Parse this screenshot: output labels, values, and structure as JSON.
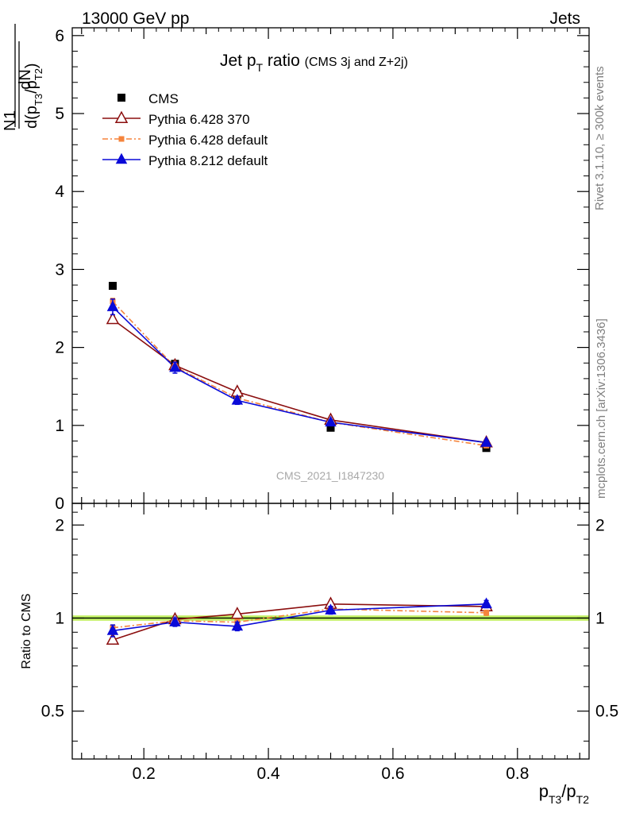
{
  "header": {
    "left": "13000 GeV pp",
    "right": "Jets"
  },
  "main_title": {
    "prefix": "Jet p",
    "sub": "T",
    "middle": " ratio ",
    "note": "(CMS 3j and Z+2j)"
  },
  "side_text": {
    "rivet": "Rivet 3.1.10, ≥ 300k events",
    "mcplots": "mcplots.cern.ch [arXiv:1306.3436]"
  },
  "watermark": "CMS_2021_I1847230",
  "colors": {
    "cms": "#000000",
    "py6_370": "#8b0e0e",
    "py6_default": "#f5843c",
    "py8": "#0a0ad8",
    "band": "#c6f06a",
    "refline": "#2f7d00"
  },
  "chart_data": [
    {
      "type": "line",
      "panel": "main",
      "ylabel": "1/N dN/d(pT3/pT2)",
      "ylim": [
        0,
        6.1
      ],
      "yticks": [
        0,
        1,
        2,
        3,
        4,
        5,
        6
      ],
      "xlim": [
        0.085,
        0.915
      ],
      "legend_position": "top-left",
      "x": [
        0.15,
        0.25,
        0.35,
        0.5,
        0.75
      ],
      "series": [
        {
          "name": "CMS",
          "marker": "square",
          "values": [
            2.79,
            1.79,
            1.4,
            0.97,
            0.71
          ]
        },
        {
          "name": "Pythia 6.428 370",
          "marker": "open-triangle",
          "line": "solid",
          "values": [
            2.36,
            1.77,
            1.43,
            1.07,
            0.78
          ],
          "errors": [
            0.04,
            0.03,
            0.02,
            0.02,
            0.02
          ]
        },
        {
          "name": "Pythia 6.428 default",
          "marker": "small-square",
          "line": "dashdot",
          "values": [
            2.59,
            1.75,
            1.35,
            1.04,
            0.74
          ],
          "errors": [
            0.04,
            0.03,
            0.02,
            0.02,
            0.02
          ]
        },
        {
          "name": "Pythia 8.212 default",
          "marker": "triangle",
          "line": "solid",
          "values": [
            2.52,
            1.74,
            1.32,
            1.04,
            0.78
          ],
          "errors": [
            0.1,
            0.07,
            0.05,
            0.03,
            0.03
          ]
        }
      ]
    },
    {
      "type": "line",
      "panel": "ratio",
      "ylabel": "Ratio to CMS",
      "ylim": [
        0.35,
        2.35
      ],
      "log_scale_y": true,
      "yticks": [
        0.5,
        1,
        2
      ],
      "xlim": [
        0.085,
        0.915
      ],
      "xticks": [
        0.2,
        0.4,
        0.6,
        0.8
      ],
      "xlabel": "pT3/pT2",
      "x": [
        0.15,
        0.25,
        0.35,
        0.5,
        0.75
      ],
      "band": [
        0.98,
        1.02
      ],
      "series": [
        {
          "name": "Pythia 6.428 370",
          "values": [
            0.85,
            0.99,
            1.03,
            1.11,
            1.09
          ],
          "errors": [
            0.01,
            0.01,
            0.01,
            0.01,
            0.01
          ]
        },
        {
          "name": "Pythia 6.428 default",
          "values": [
            0.93,
            0.98,
            0.97,
            1.07,
            1.04
          ],
          "errors": [
            0.02,
            0.02,
            0.02,
            0.02,
            0.02
          ]
        },
        {
          "name": "Pythia 8.212 default",
          "values": [
            0.91,
            0.97,
            0.94,
            1.06,
            1.11
          ],
          "errors": [
            0.04,
            0.03,
            0.03,
            0.03,
            0.03
          ]
        }
      ]
    }
  ]
}
